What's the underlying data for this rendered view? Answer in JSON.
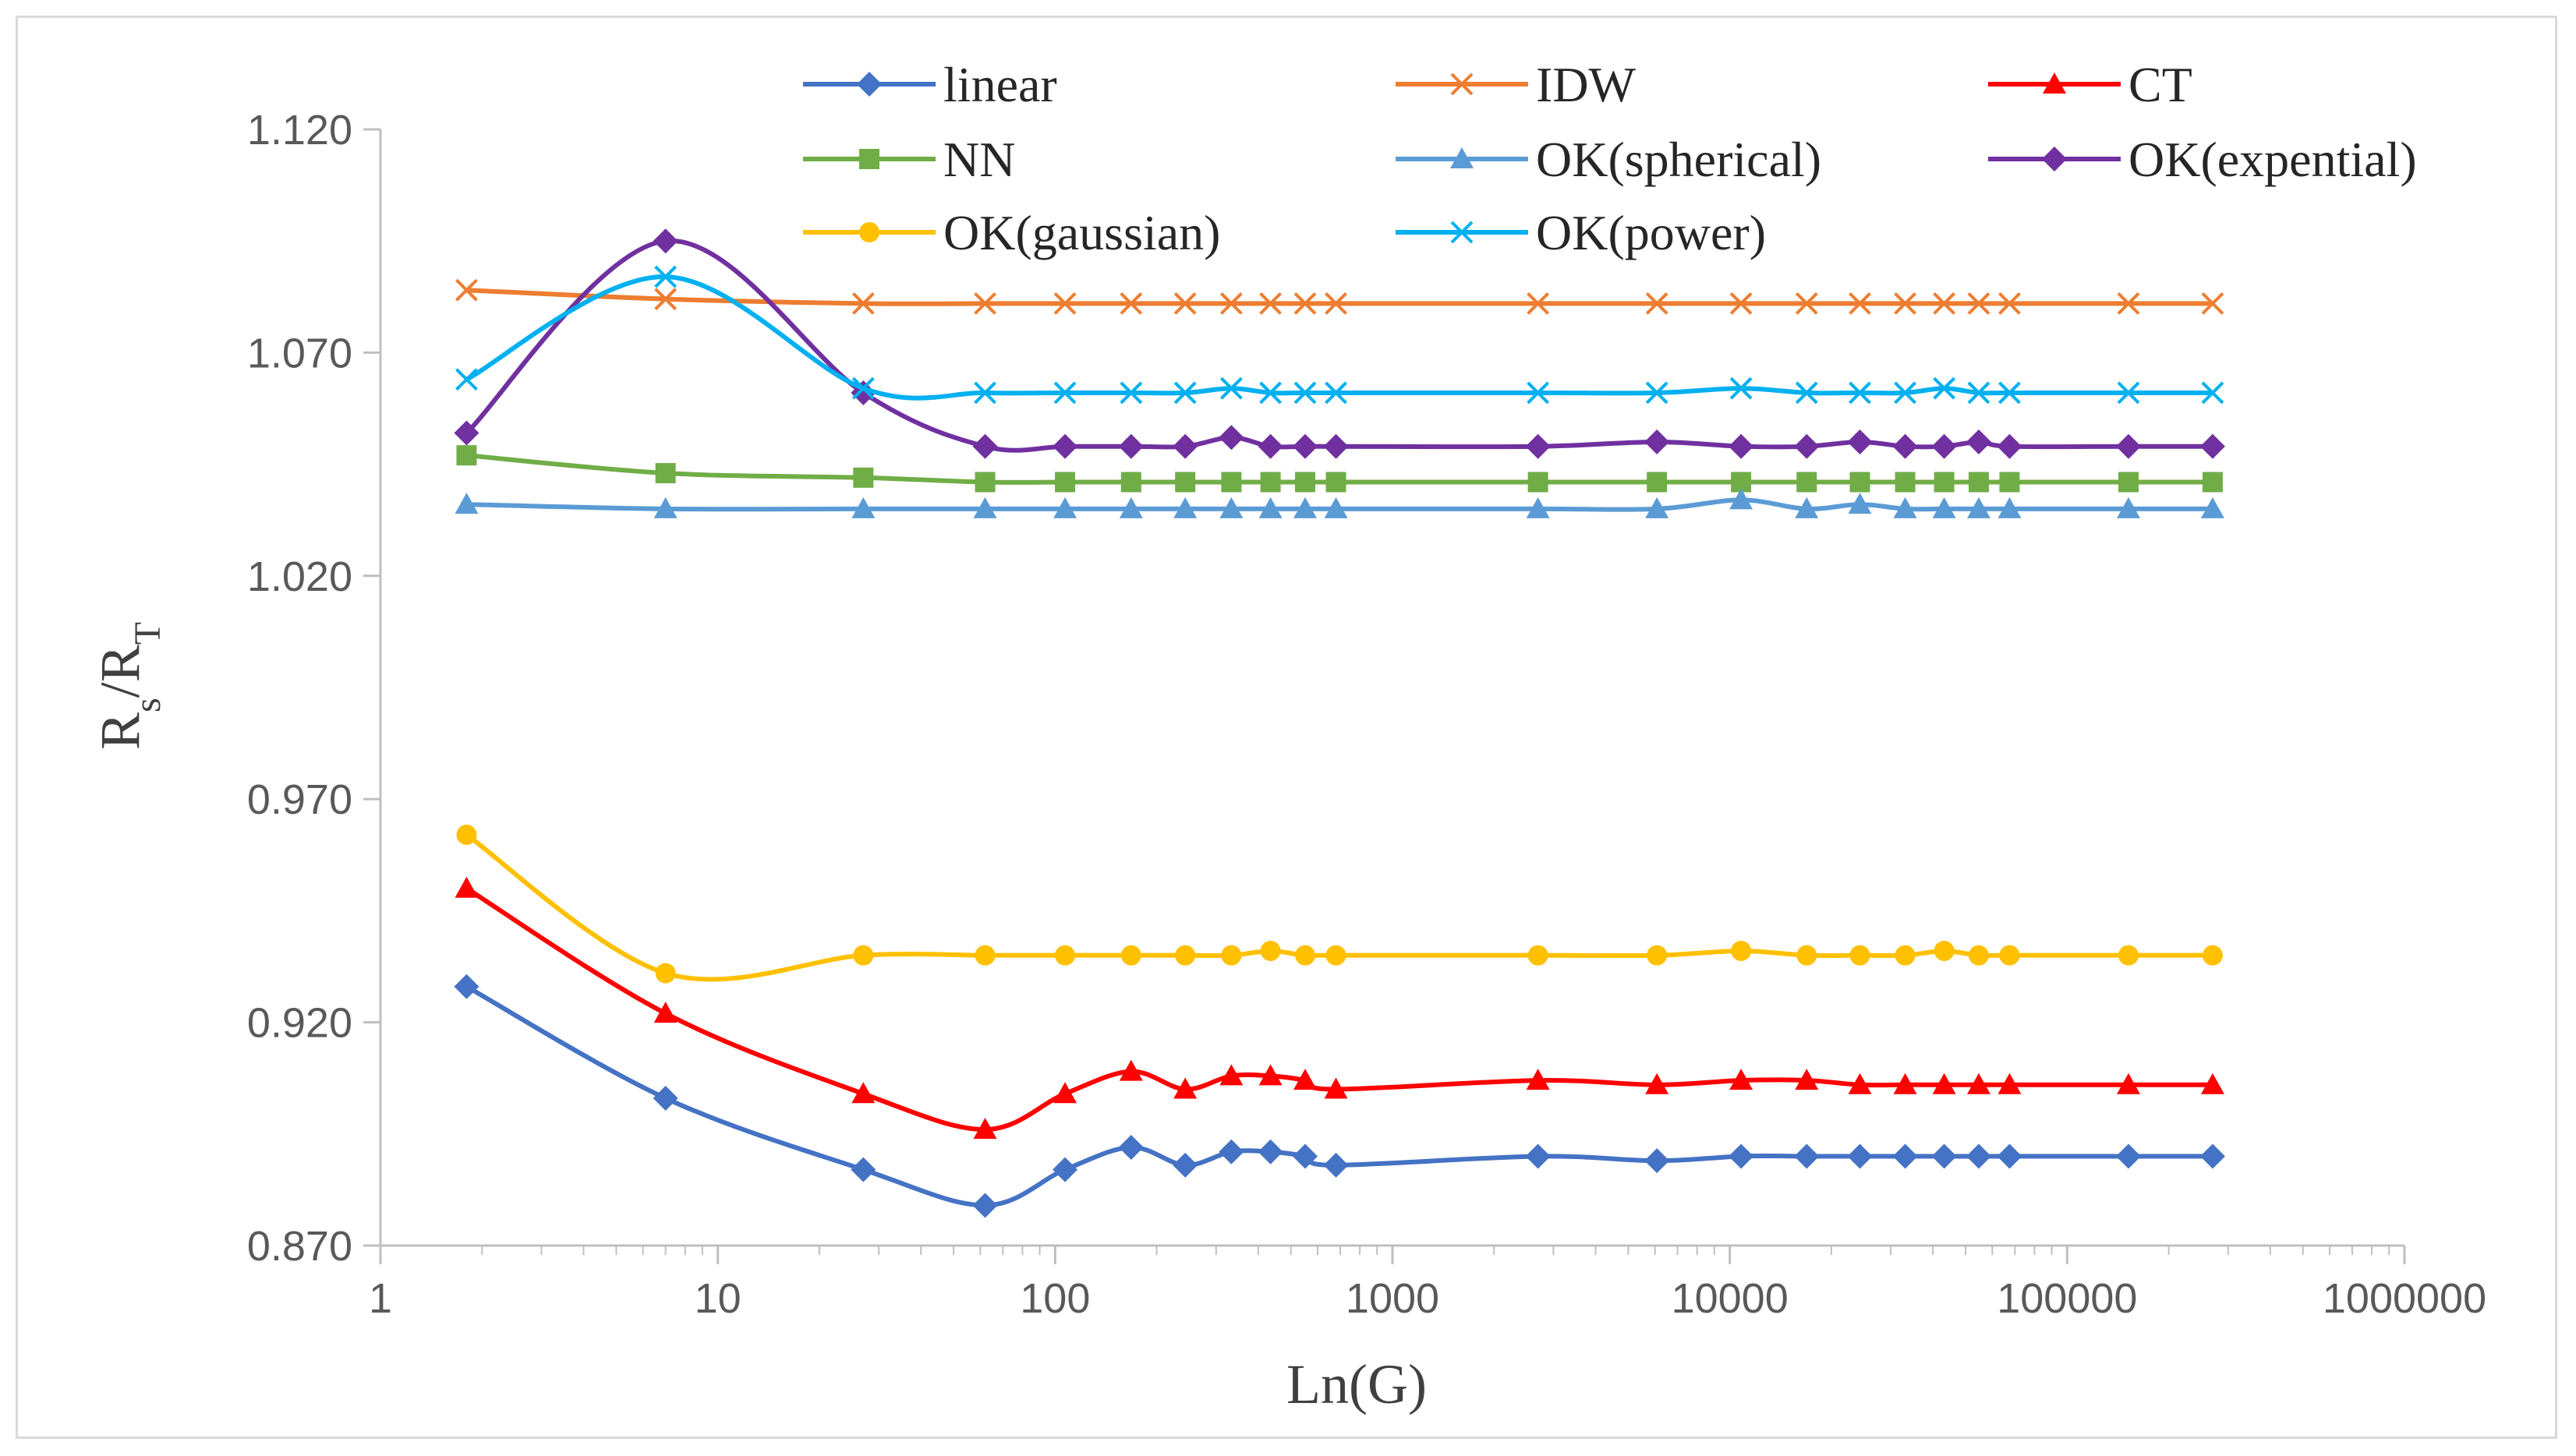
{
  "chart_data": {
    "type": "line",
    "xscale": "log",
    "xlabel": "Ln(G)",
    "ylabel_main": "R",
    "ylabel_sub1": "s",
    "ylabel_sep": "/R",
    "ylabel_sub2": "T",
    "xlim": [
      1,
      1000000
    ],
    "ylim": [
      0.87,
      1.12
    ],
    "xticks": [
      1,
      10,
      100,
      1000,
      10000,
      100000,
      1000000
    ],
    "xtick_labels": [
      "1",
      "10",
      "100",
      "1000",
      "10000",
      "100000",
      "1000000"
    ],
    "yticks": [
      0.87,
      0.92,
      0.97,
      1.02,
      1.07,
      1.12
    ],
    "ytick_labels": [
      "0.870",
      "0.920",
      "0.970",
      "1.020",
      "1.070",
      "1.120"
    ],
    "grid": false,
    "legend_position": "top",
    "x": [
      1.8,
      7,
      27,
      62,
      107,
      168,
      243,
      333,
      435,
      551,
      680,
      2700,
      6080,
      10800,
      16900,
      24300,
      33100,
      43200,
      54700,
      67500,
      152000,
      270000
    ],
    "series": [
      {
        "name": "linear",
        "color": "#4472c4",
        "marker": "diamond",
        "values": [
          0.928,
          0.903,
          0.887,
          0.879,
          0.887,
          0.892,
          0.888,
          0.891,
          0.891,
          0.89,
          0.888,
          0.89,
          0.889,
          0.89,
          0.89,
          0.89,
          0.89,
          0.89,
          0.89,
          0.89,
          0.89,
          0.89
        ]
      },
      {
        "name": "IDW",
        "color": "#ed7d31",
        "marker": "x",
        "values": [
          1.084,
          1.082,
          1.081,
          1.081,
          1.081,
          1.081,
          1.081,
          1.081,
          1.081,
          1.081,
          1.081,
          1.081,
          1.081,
          1.081,
          1.081,
          1.081,
          1.081,
          1.081,
          1.081,
          1.081,
          1.081,
          1.081
        ]
      },
      {
        "name": "CT",
        "color": "#ff0000",
        "marker": "triangle",
        "values": [
          0.95,
          0.922,
          0.904,
          0.896,
          0.904,
          0.909,
          0.905,
          0.908,
          0.908,
          0.907,
          0.905,
          0.907,
          0.906,
          0.907,
          0.907,
          0.906,
          0.906,
          0.906,
          0.906,
          0.906,
          0.906,
          0.906
        ]
      },
      {
        "name": "NN",
        "color": "#70ad47",
        "marker": "square",
        "values": [
          1.047,
          1.043,
          1.042,
          1.041,
          1.041,
          1.041,
          1.041,
          1.041,
          1.041,
          1.041,
          1.041,
          1.041,
          1.041,
          1.041,
          1.041,
          1.041,
          1.041,
          1.041,
          1.041,
          1.041,
          1.041,
          1.041
        ]
      },
      {
        "name": "OK(spherical)",
        "color": "#5b9bd5",
        "marker": "triangle",
        "values": [
          1.036,
          1.035,
          1.035,
          1.035,
          1.035,
          1.035,
          1.035,
          1.035,
          1.035,
          1.035,
          1.035,
          1.035,
          1.035,
          1.037,
          1.035,
          1.036,
          1.035,
          1.035,
          1.035,
          1.035,
          1.035,
          1.035
        ]
      },
      {
        "name": "OK(expential)",
        "color": "#7030a0",
        "marker": "diamond",
        "values": [
          1.052,
          1.095,
          1.061,
          1.049,
          1.049,
          1.049,
          1.049,
          1.051,
          1.049,
          1.049,
          1.049,
          1.049,
          1.05,
          1.049,
          1.049,
          1.05,
          1.049,
          1.049,
          1.05,
          1.049,
          1.049,
          1.049
        ]
      },
      {
        "name": "OK(gaussian)",
        "color": "#ffc000",
        "marker": "circle",
        "values": [
          0.962,
          0.931,
          0.935,
          0.935,
          0.935,
          0.935,
          0.935,
          0.935,
          0.936,
          0.935,
          0.935,
          0.935,
          0.935,
          0.936,
          0.935,
          0.935,
          0.935,
          0.936,
          0.935,
          0.935,
          0.935,
          0.935
        ]
      },
      {
        "name": "OK(power)",
        "color": "#00b0f0",
        "marker": "x",
        "values": [
          1.064,
          1.087,
          1.062,
          1.061,
          1.061,
          1.061,
          1.061,
          1.062,
          1.061,
          1.061,
          1.061,
          1.061,
          1.061,
          1.062,
          1.061,
          1.061,
          1.061,
          1.062,
          1.061,
          1.061,
          1.061,
          1.061
        ]
      }
    ]
  }
}
